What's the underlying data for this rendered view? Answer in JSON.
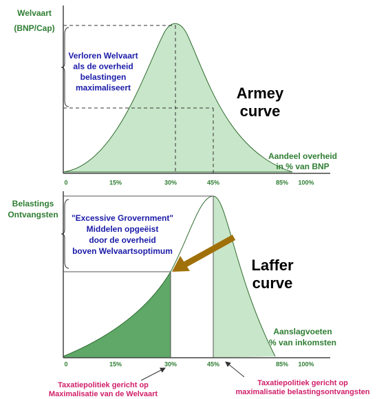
{
  "armey": {
    "y_label": [
      "Welvaart",
      "(BNP/Cap)"
    ],
    "note": [
      "Verloren Welvaart",
      "als de overheid",
      "belastingen",
      "maximaliseert"
    ],
    "title": [
      "Armey",
      "curve"
    ],
    "x_label": [
      "Aandeel overheid",
      "in % van BNP"
    ],
    "ticks": [
      "0",
      "15%",
      "30%",
      "45%",
      "85%",
      "100%"
    ]
  },
  "laffer": {
    "y_label": [
      "Belastings",
      "Ontvangsten"
    ],
    "note": [
      "\"Excessive Grovernment\"",
      "Middelen opgeëist",
      "door de overheid",
      "boven Welvaartsoptimum"
    ],
    "title": [
      "Laffer",
      "curve"
    ],
    "x_label": [
      "Aanslagvoeten",
      "% van inkomsten"
    ],
    "ticks": [
      "0",
      "15%",
      "30%",
      "45%",
      "85%",
      "100%"
    ]
  },
  "annotations": {
    "left": [
      "Taxatiepolitiek gericht op",
      "Maximalisatie van de Welvaart"
    ],
    "right": [
      "Taxatiepolitiek gericht op",
      "maximalisatie belastingsontvangsten"
    ]
  }
}
